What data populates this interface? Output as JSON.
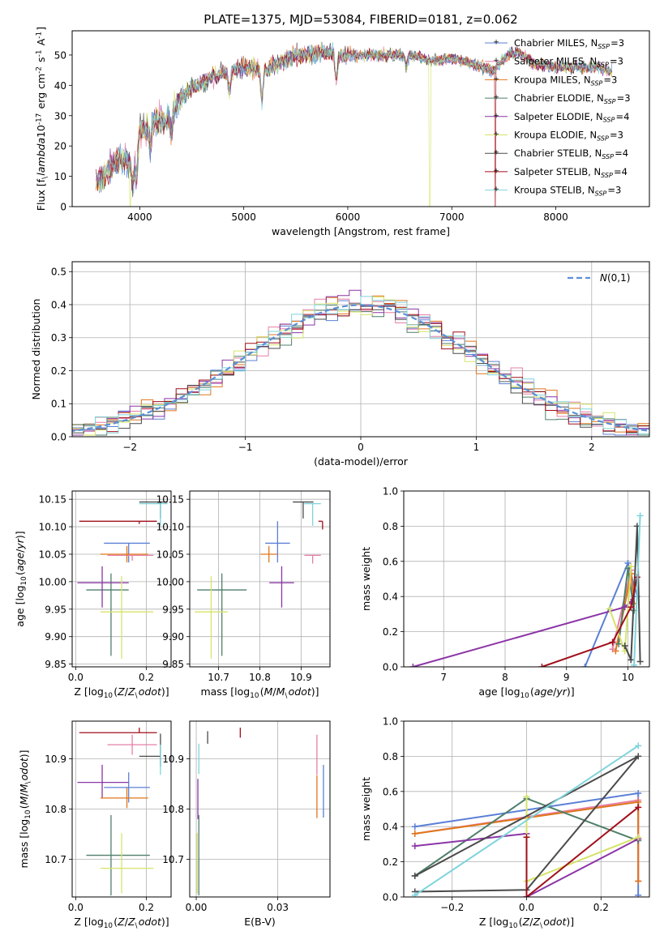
{
  "figure": {
    "title": "PLATE=1375, MJD=53084, FIBERID=0181, z=0.062"
  },
  "colors": {
    "Chabrier MILES": "#5b7fd6",
    "Salpeter MILES": "#e57fa6",
    "Kroupa MILES": "#e0761a",
    "Chabrier ELODIE": "#4f7f6a",
    "Salpeter ELODIE": "#8b35a6",
    "Kroupa ELODIE": "#d7e36a",
    "Chabrier STELIB": "#4a4a4a",
    "Salpeter STELIB": "#a00f1a",
    "Kroupa STELIB": "#7fd4dc",
    "normal": "#5b8fd6"
  },
  "chart_data": [
    {
      "id": "spectrum",
      "type": "line",
      "xlabel": "wavelength [Angstrom, rest frame]",
      "ylabel": "Flux [f$_\\lambda$10$^{-17}$ erg cm$^{-2}$ s$^{-1}$ A$^{-1}$]",
      "xlim": [
        3350,
        8900
      ],
      "ylim": [
        0,
        58
      ],
      "xticks": [
        4000,
        5000,
        6000,
        7000,
        8000
      ],
      "yticks": [
        0,
        10,
        20,
        30,
        40,
        50
      ],
      "legend_position": "top-right",
      "legend": [
        "Chabrier MILES, N$_{SSP}$=3",
        "Salpeter MILES, N$_{SSP}$=3",
        "Kroupa MILES, N$_{SSP}$=3",
        "Chabrier ELODIE, N$_{SSP}$=3",
        "Salpeter ELODIE, N$_{SSP}$=4",
        "Kroupa ELODIE, N$_{SSP}$=3",
        "Chabrier STELIB, N$_{SSP}$=4",
        "Salpeter STELIB, N$_{SSP}$=4",
        "Kroupa STELIB, N$_{SSP}$=3"
      ],
      "series_colors": [
        "Chabrier MILES",
        "Salpeter MILES",
        "Kroupa MILES",
        "Chabrier ELODIE",
        "Salpeter ELODIE",
        "Kroupa ELODIE",
        "Chabrier STELIB",
        "Salpeter STELIB",
        "Kroupa STELIB"
      ],
      "continuum_x": [
        3600,
        3700,
        3800,
        3900,
        3950,
        4000,
        4100,
        4200,
        4300,
        4400,
        4500,
        4700,
        5000,
        5200,
        5500,
        5800,
        6000,
        6300,
        6600,
        6800,
        7000,
        7200,
        7400,
        7600,
        7800,
        8000,
        8200,
        8400,
        8600
      ],
      "continuum_y": [
        8,
        12,
        16,
        14,
        18,
        25,
        27,
        28,
        30,
        36,
        39,
        43,
        46,
        45,
        50,
        51,
        50,
        50,
        50,
        48,
        49,
        47,
        45,
        52,
        47,
        46,
        46,
        46,
        44
      ],
      "absorption_lines": [
        [
          3933,
          4
        ],
        [
          3968,
          5
        ],
        [
          4101,
          18
        ],
        [
          4304,
          22
        ],
        [
          4861,
          36
        ],
        [
          5175,
          32
        ],
        [
          5890,
          38
        ],
        [
          6563,
          45
        ],
        [
          7600,
          49
        ]
      ],
      "drops": [
        {
          "series": "Kroupa ELODIE",
          "x": 3910
        },
        {
          "series": "Kroupa ELODIE",
          "x": 6790
        },
        {
          "series": "Salpeter STELIB",
          "x": 7420
        }
      ],
      "mask_line_color": "Kroupa MILES"
    },
    {
      "id": "residuals",
      "type": "histogram",
      "xlabel": "(data-model)/error",
      "ylabel": "Normed distribution",
      "xlim": [
        -2.5,
        2.5
      ],
      "ylim": [
        0,
        0.53
      ],
      "xticks": [
        -2,
        -1,
        0,
        1,
        2
      ],
      "yticks": [
        0,
        0.1,
        0.2,
        0.3,
        0.4,
        0.5
      ],
      "bin_width": 0.1,
      "legend_position": "top-right",
      "legend_entry": "$\\mathcal{N}(0,1)$",
      "normal_curve": {
        "mean": 0,
        "sigma": 1,
        "style": "dashed"
      }
    },
    {
      "id": "age-vs-Z",
      "type": "errorbar",
      "xlabel": "Z [log$_{10}$($Z/Z_\\odot$)]",
      "ylabel": "age  [log$_{10}$($age/yr$)]",
      "xlim": [
        -0.01,
        0.27
      ],
      "ylim": [
        9.845,
        10.165
      ],
      "xticks": [
        0.0,
        0.2
      ],
      "yticks": [
        9.85,
        9.9,
        9.95,
        10.0,
        10.05,
        10.1,
        10.15
      ],
      "points": [
        {
          "series": "Chabrier MILES",
          "x": 0.15,
          "xerr": [
            0.07,
            0.06
          ],
          "y": 10.07,
          "yerr": [
            0.035,
            0.0
          ]
        },
        {
          "series": "Salpeter MILES",
          "x": 0.16,
          "xerr": [
            0.07,
            0.06
          ],
          "y": 10.048,
          "yerr": [
            0.01,
            0.0
          ]
        },
        {
          "series": "Kroupa MILES",
          "x": 0.145,
          "xerr": [
            0.075,
            0.06
          ],
          "y": 10.05,
          "yerr": [
            0.015,
            0.015
          ]
        },
        {
          "series": "Chabrier ELODIE",
          "x": 0.1,
          "xerr": [
            0.07,
            0.05
          ],
          "y": 9.985,
          "yerr": [
            0.12,
            0.03
          ]
        },
        {
          "series": "Salpeter ELODIE",
          "x": 0.075,
          "xerr": [
            0.07,
            0.075
          ],
          "y": 9.998,
          "yerr": [
            0.045,
            0.03
          ]
        },
        {
          "series": "Kroupa ELODIE",
          "x": 0.13,
          "xerr": [
            0.06,
            0.09
          ],
          "y": 9.945,
          "yerr": [
            0.085,
            0.065
          ]
        },
        {
          "series": "Chabrier STELIB",
          "x": 0.24,
          "xerr": [
            0.06,
            0.02
          ],
          "y": 10.145,
          "yerr": [
            0.03,
            0.0
          ]
        },
        {
          "series": "Salpeter STELIB",
          "x": 0.18,
          "xerr": [
            0.17,
            0.05
          ],
          "y": 10.11,
          "yerr": [
            0.005,
            0.0
          ]
        },
        {
          "series": "Kroupa STELIB",
          "x": 0.24,
          "xerr": [
            0.06,
            0.02
          ],
          "y": 10.142,
          "yerr": [
            0.04,
            0.0
          ]
        }
      ]
    },
    {
      "id": "age-vs-mass",
      "type": "errorbar",
      "xlabel": "mass [log$_{10}$($M/M_\\odot$)]",
      "ylabel": "",
      "xlim": [
        10.63,
        10.97
      ],
      "ylim": [
        9.845,
        10.165
      ],
      "xticks": [
        10.7,
        10.8,
        10.9
      ],
      "yticks": [
        9.85,
        9.9,
        9.95,
        10.0,
        10.05,
        10.1,
        10.15
      ],
      "points": [
        {
          "series": "Chabrier MILES",
          "x": 10.843,
          "xerr": [
            0.03,
            0.03
          ],
          "y": 10.07,
          "yerr": [
            0.035,
            0.04
          ]
        },
        {
          "series": "Salpeter MILES",
          "x": 10.928,
          "xerr": [
            0.02,
            0.02
          ],
          "y": 10.048,
          "yerr": [
            0.015,
            0.0
          ]
        },
        {
          "series": "Kroupa MILES",
          "x": 10.822,
          "xerr": [
            0.02,
            0.02
          ],
          "y": 10.05,
          "yerr": [
            0.015,
            0.015
          ]
        },
        {
          "series": "Chabrier ELODIE",
          "x": 10.708,
          "xerr": [
            0.06,
            0.06
          ],
          "y": 9.985,
          "yerr": [
            0.12,
            0.03
          ]
        },
        {
          "series": "Salpeter ELODIE",
          "x": 10.853,
          "xerr": [
            0.03,
            0.03
          ],
          "y": 9.998,
          "yerr": [
            0.045,
            0.03
          ]
        },
        {
          "series": "Kroupa ELODIE",
          "x": 10.682,
          "xerr": [
            0.04,
            0.04
          ],
          "y": 9.945,
          "yerr": [
            0.085,
            0.065
          ]
        },
        {
          "series": "Chabrier STELIB",
          "x": 10.905,
          "xerr": [
            0.025,
            0.025
          ],
          "y": 10.145,
          "yerr": [
            0.03,
            0.0
          ]
        },
        {
          "series": "Salpeter STELIB",
          "x": 10.952,
          "xerr": [
            0.01,
            0.0
          ],
          "y": 10.11,
          "yerr": [
            0.015,
            0.0
          ]
        },
        {
          "series": "Kroupa STELIB",
          "x": 10.928,
          "xerr": [
            0.02,
            0.02
          ],
          "y": 10.142,
          "yerr": [
            0.04,
            0.0
          ]
        }
      ]
    },
    {
      "id": "weight-vs-age",
      "type": "line",
      "xlabel": "age  [log$_{10}$($age/yr$)]",
      "ylabel": "mass weight",
      "xlim": [
        6.35,
        10.35
      ],
      "ylim": [
        0,
        1.0
      ],
      "xticks": [
        7,
        8,
        9,
        10
      ],
      "yticks": [
        0.0,
        0.2,
        0.4,
        0.6,
        0.8,
        1.0
      ],
      "grid": true,
      "series": [
        {
          "name": "Chabrier MILES",
          "x": [
            9.3,
            10.0,
            10.15
          ],
          "y": [
            0.0,
            0.59,
            0.4
          ]
        },
        {
          "name": "Salpeter MILES",
          "x": [
            9.75,
            10.05,
            10.1
          ],
          "y": [
            0.1,
            0.55,
            0.36
          ]
        },
        {
          "name": "Kroupa MILES",
          "x": [
            9.8,
            10.05,
            10.1
          ],
          "y": [
            0.09,
            0.53,
            0.36
          ]
        },
        {
          "name": "Chabrier ELODIE",
          "x": [
            9.85,
            10.0,
            10.1
          ],
          "y": [
            0.13,
            0.56,
            0.32
          ]
        },
        {
          "name": "Salpeter ELODIE",
          "x": [
            6.5,
            9.95,
            10.05
          ],
          "y": [
            0.0,
            0.34,
            0.37
          ]
        },
        {
          "name": "Kroupa ELODIE",
          "x": [
            9.7,
            9.95,
            10.05
          ],
          "y": [
            0.33,
            0.09,
            0.57
          ]
        },
        {
          "name": "Chabrier STELIB",
          "x": [
            9.95,
            10.05,
            10.15,
            10.2
          ],
          "y": [
            0.12,
            0.04,
            0.8,
            0.03
          ]
        },
        {
          "name": "Salpeter STELIB",
          "x": [
            8.6,
            9.75,
            10.05,
            10.15
          ],
          "y": [
            0.0,
            0.14,
            0.34,
            0.51
          ]
        },
        {
          "name": "Kroupa STELIB",
          "x": [
            10.1,
            10.2
          ],
          "y": [
            0.01,
            0.86
          ]
        }
      ]
    },
    {
      "id": "mass-vs-Z",
      "type": "errorbar",
      "xlabel": "Z [log$_{10}$($Z/Z_\\odot$)]",
      "ylabel": "mass [log$_{10}$($M/M_\\odot$)]",
      "xlim": [
        -0.01,
        0.27
      ],
      "ylim": [
        10.625,
        10.975
      ],
      "xticks": [
        0.0,
        0.2
      ],
      "yticks": [
        10.7,
        10.8,
        10.9
      ],
      "points": [
        {
          "series": "Chabrier MILES",
          "x": 0.15,
          "xerr": [
            0.07,
            0.06
          ],
          "y": 10.843,
          "yerr": [
            0.03,
            0.03
          ]
        },
        {
          "series": "Salpeter MILES",
          "x": 0.16,
          "xerr": [
            0.07,
            0.07
          ],
          "y": 10.928,
          "yerr": [
            0.02,
            0.02
          ]
        },
        {
          "series": "Kroupa MILES",
          "x": 0.145,
          "xerr": [
            0.075,
            0.06
          ],
          "y": 10.822,
          "yerr": [
            0.02,
            0.02
          ]
        },
        {
          "series": "Chabrier ELODIE",
          "x": 0.1,
          "xerr": [
            0.07,
            0.11
          ],
          "y": 10.708,
          "yerr": [
            0.08,
            0.08
          ]
        },
        {
          "series": "Salpeter ELODIE",
          "x": 0.075,
          "xerr": [
            0.07,
            0.075
          ],
          "y": 10.853,
          "yerr": [
            0.03,
            0.035
          ]
        },
        {
          "series": "Kroupa ELODIE",
          "x": 0.13,
          "xerr": [
            0.06,
            0.09
          ],
          "y": 10.682,
          "yerr": [
            0.05,
            0.07
          ]
        },
        {
          "series": "Chabrier STELIB",
          "x": 0.24,
          "xerr": [
            0.06,
            0.0
          ],
          "y": 10.905,
          "yerr": [
            0.02,
            0.045
          ]
        },
        {
          "series": "Salpeter STELIB",
          "x": 0.18,
          "xerr": [
            0.17,
            0.05
          ],
          "y": 10.952,
          "yerr": [
            0.0,
            0.01
          ]
        },
        {
          "series": "Kroupa STELIB",
          "x": 0.24,
          "xerr": [
            0.0,
            0.0
          ],
          "y": 10.928,
          "yerr": [
            0.06,
            0.0
          ]
        }
      ]
    },
    {
      "id": "mass-vs-EBV",
      "type": "errorbar",
      "xlabel": "E(B-V)",
      "ylabel": "",
      "xlim": [
        -0.002,
        0.041
      ],
      "ylim": [
        10.625,
        10.975
      ],
      "xticks": [
        0.0,
        0.025
      ],
      "yticks": [
        10.7,
        10.8,
        10.9
      ],
      "points": [
        {
          "series": "Chabrier MILES",
          "x": 0.039,
          "xerr": [
            0.0,
            0.0
          ],
          "y": 10.843,
          "yerr": [
            0.06,
            0.045
          ]
        },
        {
          "series": "Salpeter MILES",
          "x": 0.037,
          "xerr": [
            0.0,
            0.0
          ],
          "y": 10.928,
          "yerr": [
            0.06,
            0.02
          ]
        },
        {
          "series": "Kroupa MILES",
          "x": 0.037,
          "xerr": [
            0.0,
            0.0
          ],
          "y": 10.822,
          "yerr": [
            0.04,
            0.045
          ]
        },
        {
          "series": "Chabrier ELODIE",
          "x": 0.0008,
          "xerr": [
            0.0,
            0.0
          ],
          "y": 10.708,
          "yerr": [
            0.08,
            0.08
          ]
        },
        {
          "series": "Salpeter ELODIE",
          "x": 0.0005,
          "xerr": [
            0.0,
            0.0
          ],
          "y": 10.82,
          "yerr": [
            0.04,
            0.04
          ]
        },
        {
          "series": "Kroupa ELODIE",
          "x": 0.0003,
          "xerr": [
            0.0,
            0.0
          ],
          "y": 10.682,
          "yerr": [
            0.05,
            0.07
          ]
        },
        {
          "series": "Chabrier STELIB",
          "x": 0.0035,
          "xerr": [
            0.0,
            0.0
          ],
          "y": 10.93,
          "yerr": [
            0.0,
            0.025
          ]
        },
        {
          "series": "Salpeter STELIB",
          "x": 0.0135,
          "xerr": [
            0.0,
            0.0
          ],
          "y": 10.952,
          "yerr": [
            0.01,
            0.01
          ]
        },
        {
          "series": "Kroupa STELIB",
          "x": 0.0008,
          "xerr": [
            0.0,
            0.0
          ],
          "y": 10.9,
          "yerr": [
            0.03,
            0.03
          ]
        }
      ]
    },
    {
      "id": "weight-vs-Z",
      "type": "line",
      "xlabel": "Z [log$_{10}$($Z/Z_\\odot$)]",
      "ylabel": "mass weight",
      "xlim": [
        -0.33,
        0.33
      ],
      "ylim": [
        0,
        1.0
      ],
      "xticks": [
        -0.2,
        0.0,
        0.2
      ],
      "yticks": [
        0.0,
        0.2,
        0.4,
        0.6,
        0.8,
        1.0
      ],
      "grid": true,
      "series": [
        {
          "name": "Chabrier MILES",
          "x": [
            -0.3,
            0.3,
            0.3
          ],
          "y": [
            0.4,
            0.59,
            0.01
          ]
        },
        {
          "name": "Salpeter MILES",
          "x": [
            -0.3,
            0.3,
            0.3
          ],
          "y": [
            0.36,
            0.55,
            0.09
          ]
        },
        {
          "name": "Kroupa MILES",
          "x": [
            -0.3,
            0.3,
            0.3
          ],
          "y": [
            0.36,
            0.54,
            0.09
          ]
        },
        {
          "name": "Chabrier ELODIE",
          "x": [
            -0.3,
            0.0,
            0.3
          ],
          "y": [
            0.12,
            0.56,
            0.32
          ]
        },
        {
          "name": "Salpeter ELODIE",
          "x": [
            -0.3,
            0.0,
            0.0,
            0.3
          ],
          "y": [
            0.29,
            0.36,
            0.0,
            0.33
          ]
        },
        {
          "name": "Kroupa ELODIE",
          "x": [
            0.0,
            0.0,
            0.3
          ],
          "y": [
            0.57,
            0.09,
            0.34
          ]
        },
        {
          "name": "Chabrier STELIB",
          "x": [
            -0.3,
            0.0,
            0.3,
            -0.3
          ],
          "y": [
            0.03,
            0.04,
            0.8,
            0.12
          ]
        },
        {
          "name": "Salpeter STELIB",
          "x": [
            0.0,
            0.0,
            0.3
          ],
          "y": [
            0.34,
            0.0,
            0.51
          ]
        },
        {
          "name": "Kroupa STELIB",
          "x": [
            -0.3,
            0.3
          ],
          "y": [
            0.01,
            0.86
          ]
        }
      ]
    }
  ]
}
